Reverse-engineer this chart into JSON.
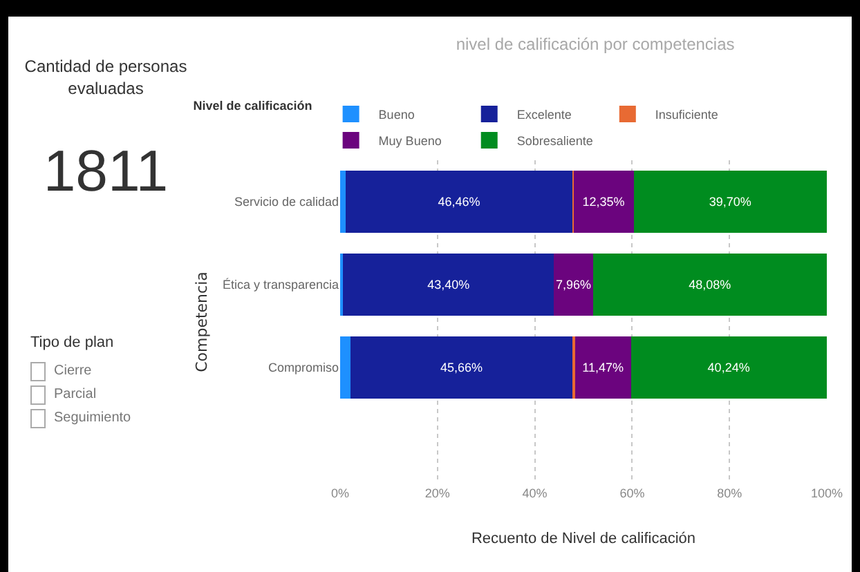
{
  "chart_data": [
    {
      "type": "other",
      "title": "Cantidad de personas evaluadas",
      "annotations": [
        "1811"
      ]
    },
    {
      "type": "other",
      "title": "Tipo de plan",
      "annotations": [
        "Cierre",
        "Parcial",
        "Seguimiento"
      ]
    },
    {
      "type": "bar",
      "orientation": "horizontal",
      "stacked": true,
      "title": "nivel de calificación por competencias",
      "categories": [
        "Servicio de calidad",
        "Ética y transparencia",
        "Compromiso"
      ],
      "series": [
        {
          "name": "Bueno",
          "color": "#1e90ff",
          "values": [
            1.2,
            0.56,
            2.1
          ]
        },
        {
          "name": "Excelente",
          "color": "#16219a",
          "values": [
            46.46,
            43.4,
            45.66
          ],
          "value_labels": [
            "46,46%",
            "43,40%",
            "45,66%"
          ]
        },
        {
          "name": "Insuficiente",
          "color": "#e86a33",
          "values": [
            0.29,
            null,
            0.5
          ]
        },
        {
          "name": "Muy Bueno",
          "color": "#6b047e",
          "values": [
            12.35,
            7.96,
            11.47
          ],
          "value_labels": [
            "12,35%",
            "7,96%",
            "11,47%"
          ]
        },
        {
          "name": "Sobresaliente",
          "color": "#008c1f",
          "values": [
            39.7,
            48.08,
            40.24
          ],
          "value_labels": [
            "39,70%",
            "48,08%",
            "40,24%"
          ]
        }
      ],
      "xlim": [
        0,
        100
      ],
      "xticks": [
        {
          "value": 0,
          "label": "0%"
        },
        {
          "value": 20,
          "label": "20%"
        },
        {
          "value": 40,
          "label": "40%"
        },
        {
          "value": 60,
          "label": "60%"
        },
        {
          "value": 80,
          "label": "80%"
        },
        {
          "value": 100,
          "label": "100%"
        }
      ],
      "xlabel": "Recuento de Nivel de calificación",
      "ylabel": "Competencia",
      "legend_title": "Nivel de calificación",
      "legend": "top",
      "grid": "x"
    }
  ]
}
